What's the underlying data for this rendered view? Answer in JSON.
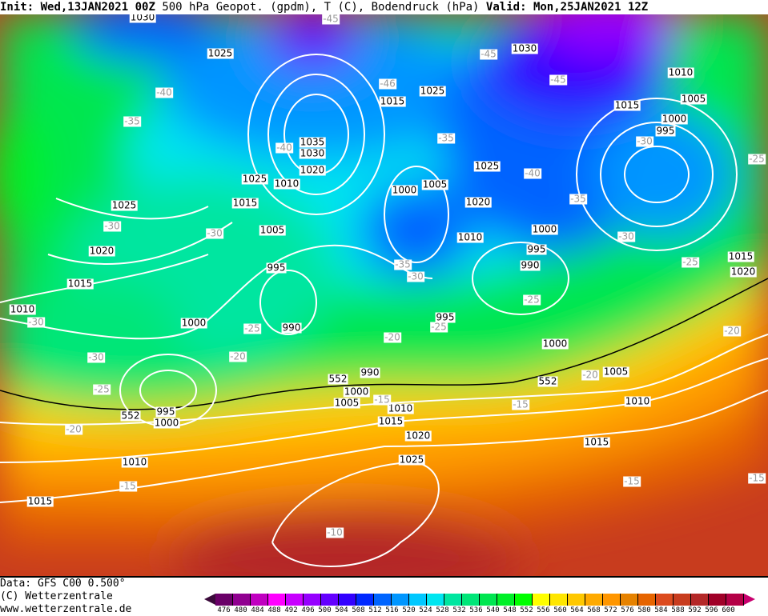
{
  "header": {
    "init_label": "Init:",
    "init_value": "Wed,13JAN2021 00Z",
    "title": "500 hPa Geopot. (gpdm), T (C), Bodendruck (hPa)",
    "valid_label": "Valid:",
    "valid_value": "Mon,25JAN2021 12Z"
  },
  "footer": {
    "data_line": "Data: GFS C00 0.500°",
    "copyright": "(C) Wetterzentrale",
    "url": "www.wetterzentrale.de"
  },
  "legend": {
    "ticks": [
      "476",
      "480",
      "484",
      "488",
      "492",
      "496",
      "500",
      "504",
      "508",
      "512",
      "516",
      "520",
      "524",
      "528",
      "532",
      "536",
      "540",
      "548",
      "552",
      "556",
      "560",
      "564",
      "568",
      "572",
      "576",
      "580",
      "584",
      "588",
      "592",
      "596",
      "600"
    ],
    "low_arrow_color": "#3a0a3a",
    "high_arrow_color": "#c8006e",
    "colors": [
      "#6a0068",
      "#900090",
      "#c000c0",
      "#ff00ff",
      "#c800ff",
      "#9600ff",
      "#6400ff",
      "#3200ff",
      "#0028ff",
      "#0064ff",
      "#0096ff",
      "#00c8ff",
      "#00e6f0",
      "#00e6a0",
      "#00e678",
      "#00e650",
      "#00f028",
      "#00ff00",
      "#ffff00",
      "#ffe600",
      "#ffc800",
      "#ffaa00",
      "#ff9600",
      "#e68200",
      "#e66400",
      "#dc4b1e",
      "#c83c1e",
      "#b42828",
      "#a00028",
      "#b40046"
    ]
  },
  "map": {
    "pressure_labels": [
      "1030",
      "1025",
      "1035",
      "1030",
      "1020",
      "1025",
      "1010",
      "1015",
      "1025",
      "1020",
      "1005",
      "1000",
      "1005",
      "995",
      "1015",
      "1010",
      "1000",
      "990",
      "990",
      "1000",
      "1005",
      "1010",
      "995",
      "1000",
      "1015",
      "1020",
      "1025",
      "1010",
      "1015",
      "1015",
      "1025",
      "1030",
      "1015",
      "1010",
      "1005",
      "1000",
      "995",
      "1025",
      "1020",
      "1010",
      "1000",
      "995",
      "990",
      "1015",
      "1020",
      "995",
      "1000",
      "1005",
      "1010",
      "1015"
    ],
    "temperature_labels": [
      "-45",
      "-40",
      "-35",
      "-40",
      "-30",
      "-30",
      "-30",
      "-25",
      "-20",
      "-30",
      "-25",
      "-20",
      "-15",
      "-15",
      "-10",
      "-46",
      "-45",
      "-45",
      "-30",
      "-25",
      "-40",
      "-35",
      "-30",
      "-25",
      "-35",
      "-30",
      "-25",
      "-25",
      "-20",
      "-20",
      "-20",
      "-15",
      "-15",
      "-15",
      "-35"
    ],
    "height_labels": [
      "552",
      "552",
      "552"
    ]
  }
}
